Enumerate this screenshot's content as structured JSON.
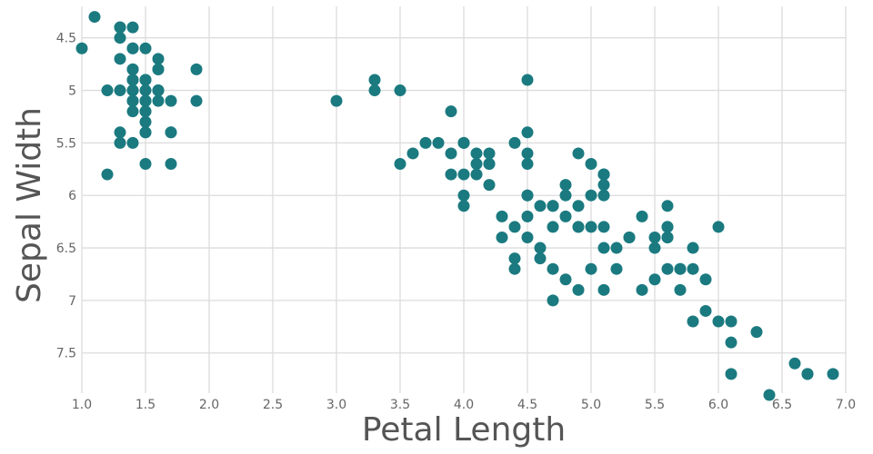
{
  "chart_data": {
    "type": "scatter",
    "title": "",
    "xlabel": "Petal Length",
    "ylabel": "Sepal Width",
    "xlim": [
      1.0,
      7.0
    ],
    "ylim": [
      4.2,
      7.9
    ],
    "y_inverted": true,
    "grid": true,
    "point_color": "#1a7a80",
    "x_ticks": [
      "1.0",
      "1.5",
      "2.0",
      "2.5",
      "3.0",
      "3.5",
      "4.0",
      "4.5",
      "5.0",
      "5.5",
      "6.0",
      "6.5",
      "7.0"
    ],
    "y_ticks": [
      "4.5",
      "5",
      "5.5",
      "6",
      "6.5",
      "7",
      "7.5"
    ],
    "points": [
      [
        1.4,
        5.1
      ],
      [
        1.4,
        4.9
      ],
      [
        1.3,
        4.7
      ],
      [
        1.5,
        4.6
      ],
      [
        1.4,
        5.0
      ],
      [
        1.7,
        5.4
      ],
      [
        1.4,
        4.6
      ],
      [
        1.5,
        5.0
      ],
      [
        1.4,
        4.4
      ],
      [
        1.5,
        4.9
      ],
      [
        1.5,
        5.4
      ],
      [
        1.6,
        4.8
      ],
      [
        1.4,
        4.8
      ],
      [
        1.1,
        4.3
      ],
      [
        1.2,
        5.8
      ],
      [
        1.5,
        5.7
      ],
      [
        1.3,
        5.4
      ],
      [
        1.4,
        5.1
      ],
      [
        1.7,
        5.7
      ],
      [
        1.5,
        5.1
      ],
      [
        1.7,
        5.4
      ],
      [
        1.5,
        5.1
      ],
      [
        1.0,
        4.6
      ],
      [
        1.7,
        5.1
      ],
      [
        1.9,
        4.8
      ],
      [
        1.6,
        5.0
      ],
      [
        1.6,
        5.0
      ],
      [
        1.5,
        5.2
      ],
      [
        1.4,
        5.2
      ],
      [
        1.6,
        4.7
      ],
      [
        1.6,
        4.8
      ],
      [
        1.5,
        5.4
      ],
      [
        1.5,
        5.2
      ],
      [
        1.4,
        5.5
      ],
      [
        1.5,
        4.9
      ],
      [
        1.2,
        5.0
      ],
      [
        1.3,
        5.5
      ],
      [
        1.4,
        4.9
      ],
      [
        1.3,
        4.4
      ],
      [
        1.5,
        5.1
      ],
      [
        1.3,
        5.0
      ],
      [
        1.3,
        4.5
      ],
      [
        1.3,
        4.4
      ],
      [
        1.6,
        5.0
      ],
      [
        1.9,
        5.1
      ],
      [
        1.4,
        4.8
      ],
      [
        1.6,
        5.1
      ],
      [
        1.4,
        4.6
      ],
      [
        1.5,
        5.3
      ],
      [
        1.4,
        5.0
      ],
      [
        4.7,
        7.0
      ],
      [
        4.5,
        6.4
      ],
      [
        4.9,
        6.9
      ],
      [
        4.0,
        5.5
      ],
      [
        4.6,
        6.5
      ],
      [
        4.5,
        5.7
      ],
      [
        4.7,
        6.3
      ],
      [
        3.3,
        4.9
      ],
      [
        4.6,
        6.6
      ],
      [
        3.9,
        5.2
      ],
      [
        3.5,
        5.0
      ],
      [
        4.2,
        5.9
      ],
      [
        4.0,
        6.0
      ],
      [
        4.7,
        6.1
      ],
      [
        3.6,
        5.6
      ],
      [
        4.4,
        6.7
      ],
      [
        4.5,
        5.6
      ],
      [
        4.1,
        5.8
      ],
      [
        4.5,
        6.2
      ],
      [
        3.9,
        5.6
      ],
      [
        4.8,
        5.9
      ],
      [
        4.0,
        6.1
      ],
      [
        4.9,
        6.3
      ],
      [
        4.7,
        6.1
      ],
      [
        4.3,
        6.4
      ],
      [
        4.4,
        6.6
      ],
      [
        4.8,
        6.8
      ],
      [
        5.0,
        6.7
      ],
      [
        4.5,
        6.0
      ],
      [
        3.5,
        5.7
      ],
      [
        3.8,
        5.5
      ],
      [
        3.7,
        5.5
      ],
      [
        3.9,
        5.8
      ],
      [
        5.1,
        6.0
      ],
      [
        4.5,
        5.4
      ],
      [
        4.5,
        6.0
      ],
      [
        4.7,
        6.7
      ],
      [
        4.4,
        6.3
      ],
      [
        4.1,
        5.6
      ],
      [
        4.0,
        5.5
      ],
      [
        4.4,
        5.5
      ],
      [
        4.6,
        6.1
      ],
      [
        4.0,
        5.8
      ],
      [
        3.3,
        5.0
      ],
      [
        4.2,
        5.6
      ],
      [
        4.2,
        5.7
      ],
      [
        4.2,
        5.7
      ],
      [
        4.3,
        6.2
      ],
      [
        3.0,
        5.1
      ],
      [
        4.1,
        5.7
      ],
      [
        6.0,
        6.3
      ],
      [
        5.1,
        5.8
      ],
      [
        5.9,
        7.1
      ],
      [
        5.6,
        6.3
      ],
      [
        5.8,
        6.5
      ],
      [
        6.6,
        7.6
      ],
      [
        4.5,
        4.9
      ],
      [
        6.3,
        7.3
      ],
      [
        5.8,
        6.7
      ],
      [
        6.1,
        7.2
      ],
      [
        5.1,
        6.5
      ],
      [
        5.3,
        6.4
      ],
      [
        5.5,
        6.8
      ],
      [
        5.0,
        5.7
      ],
      [
        5.1,
        5.8
      ],
      [
        5.3,
        6.4
      ],
      [
        5.5,
        6.5
      ],
      [
        6.7,
        7.7
      ],
      [
        6.9,
        7.7
      ],
      [
        5.0,
        6.0
      ],
      [
        5.7,
        6.9
      ],
      [
        4.9,
        5.6
      ],
      [
        6.7,
        7.7
      ],
      [
        4.9,
        6.3
      ],
      [
        5.7,
        6.7
      ],
      [
        6.0,
        7.2
      ],
      [
        4.8,
        6.2
      ],
      [
        4.9,
        6.1
      ],
      [
        5.6,
        6.4
      ],
      [
        5.8,
        7.2
      ],
      [
        6.1,
        7.4
      ],
      [
        6.4,
        7.9
      ],
      [
        5.6,
        6.4
      ],
      [
        5.1,
        6.3
      ],
      [
        5.6,
        6.1
      ],
      [
        6.1,
        7.7
      ],
      [
        5.6,
        6.3
      ],
      [
        5.5,
        6.4
      ],
      [
        4.8,
        6.0
      ],
      [
        5.4,
        6.9
      ],
      [
        5.6,
        6.7
      ],
      [
        5.1,
        6.9
      ],
      [
        5.1,
        5.8
      ],
      [
        5.9,
        6.8
      ],
      [
        5.7,
        6.7
      ],
      [
        5.2,
        6.7
      ],
      [
        5.0,
        6.3
      ],
      [
        5.2,
        6.5
      ],
      [
        5.4,
        6.2
      ],
      [
        5.1,
        5.9
      ]
    ]
  }
}
